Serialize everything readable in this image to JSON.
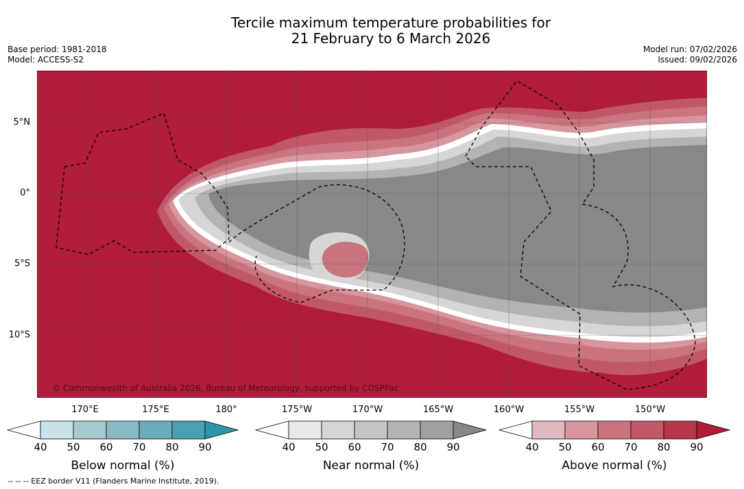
{
  "title": {
    "line1": "Tercile maximum temperature probabilities for",
    "line2": "21 February to 6 March 2026"
  },
  "meta_left": {
    "base_period": "Base period: 1981-2018",
    "model": "Model: ACCESS-S2"
  },
  "meta_right": {
    "model_run": "Model run: 07/02/2026",
    "issued": "Issued: 09/02/2026"
  },
  "map": {
    "copyright": "© Commonwealth of Australia 2026, Bureau of Meteorology, supported by COSPPac",
    "lat_ticks": [
      "5°N",
      "0°",
      "5°S",
      "10°S"
    ],
    "lon_ticks": [
      "170°E",
      "175°E",
      "180°",
      "175°W",
      "170°W",
      "165°W",
      "160°W",
      "155°W",
      "150°W"
    ],
    "colors": {
      "above_90": "#b01c39",
      "near_90": "#888888",
      "background": "#ffffff"
    }
  },
  "colorbars": [
    {
      "title": "Below normal (%)",
      "ticks": [
        "40",
        "50",
        "60",
        "70",
        "80",
        "90"
      ],
      "colors": [
        "#ffffff",
        "#c9e3ea",
        "#a7c9cf",
        "#8ab9c3",
        "#6aabb9",
        "#4aa1b1",
        "#2f95a9"
      ]
    },
    {
      "title": "Near normal (%)",
      "ticks": [
        "40",
        "50",
        "60",
        "70",
        "80",
        "90"
      ],
      "colors": [
        "#ffffff",
        "#e8e8e8",
        "#d6d6d6",
        "#c4c4c4",
        "#b3b3b3",
        "#a1a1a1",
        "#888888"
      ]
    },
    {
      "title": "Above normal (%)",
      "ticks": [
        "40",
        "50",
        "60",
        "70",
        "80",
        "90"
      ],
      "colors": [
        "#ffffff",
        "#e1b8be",
        "#d7959d",
        "#ca747e",
        "#c15868",
        "#b8364b",
        "#b01c39"
      ]
    }
  ],
  "eez_note": "--  --  -- EEZ border V11 (Flanders Marine Institute, 2019)."
}
